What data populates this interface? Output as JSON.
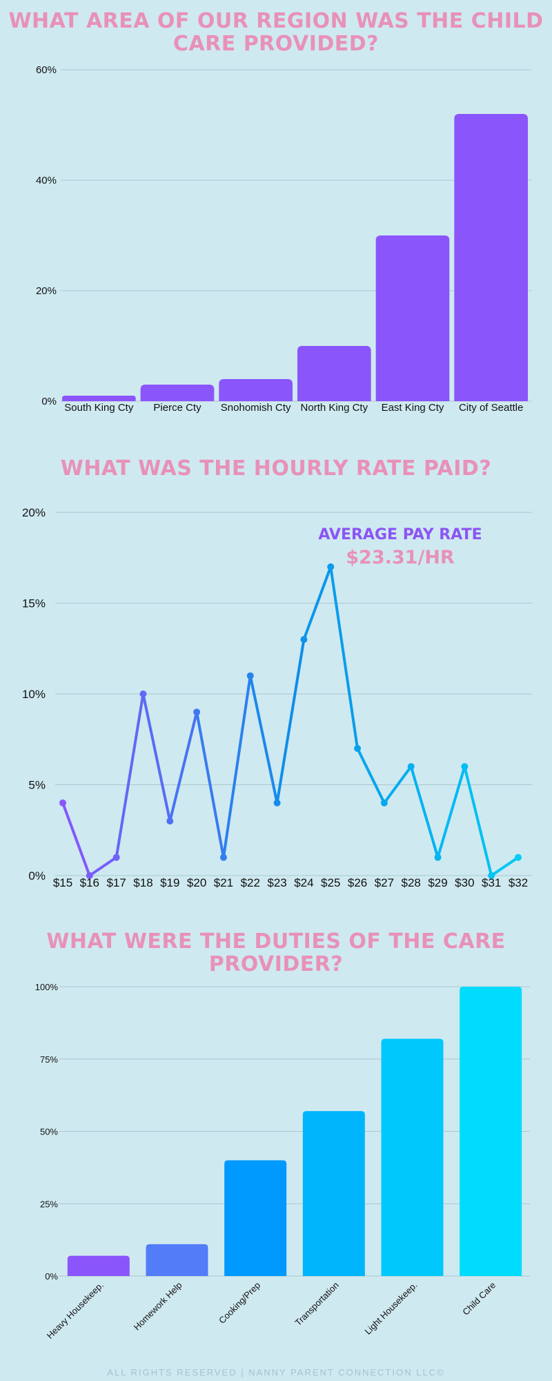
{
  "colors": {
    "background": "#cfe9f0",
    "title": "#e891b8",
    "bar_region": "#8b55fc",
    "grid": "#a9c6cf"
  },
  "footer": "ALL RIGHTS RESERVED | NANNY PARENT CONNECTION LLC©",
  "chart_data": [
    {
      "type": "bar",
      "title": "WHAT AREA OF OUR REGION WAS THE CHILD CARE PROVIDED?",
      "categories": [
        "South King Cty",
        "Pierce Cty",
        "Snohomish Cty",
        "North King Cty",
        "East King Cty",
        "City of Seattle"
      ],
      "values": [
        1,
        3,
        4,
        10,
        30,
        52
      ],
      "yticks": [
        "0%",
        "20%",
        "40%",
        "60%"
      ],
      "ylim": [
        0,
        60
      ],
      "grid": true,
      "colors": [
        "#8b55fc",
        "#8b55fc",
        "#8b55fc",
        "#8b55fc",
        "#8b55fc",
        "#8b55fc"
      ]
    },
    {
      "type": "line",
      "title": "WHAT WAS THE HOURLY RATE PAID?",
      "categories": [
        "$15",
        "$16",
        "$17",
        "$18",
        "$19",
        "$20",
        "$21",
        "$22",
        "$23",
        "$24",
        "$25",
        "$26",
        "$27",
        "$28",
        "$29",
        "$30",
        "$31",
        "$32"
      ],
      "values": [
        4,
        0,
        1,
        10,
        3,
        9,
        1,
        11,
        4,
        13,
        17,
        7,
        4,
        6,
        1,
        6,
        0,
        1
      ],
      "yticks": [
        "0%",
        "5%",
        "10%",
        "15%",
        "20%"
      ],
      "ylim": [
        0,
        20
      ],
      "grid": true,
      "gradient": [
        "#8b55fc",
        "#0d8fea",
        "#00ccf5"
      ],
      "annotations": [
        "AVERAGE PAY RATE",
        "$23.31/HR"
      ]
    },
    {
      "type": "bar",
      "title": "WHAT WERE THE DUTIES OF THE CARE PROVIDER?",
      "categories": [
        "Heavy Housekeep.",
        "Homework Help",
        "Cooking/Prep",
        "Transportation",
        "Light Housekeep.",
        "Child Care"
      ],
      "values": [
        7,
        11,
        40,
        57,
        82,
        100
      ],
      "yticks": [
        "0%",
        "25%",
        "50%",
        "75%",
        "100%"
      ],
      "ylim": [
        0,
        100
      ],
      "grid": true,
      "colors": [
        "#8b55fc",
        "#527cf8",
        "#0099fd",
        "#00b5fb",
        "#00c8fc",
        "#00dcfd"
      ]
    }
  ]
}
